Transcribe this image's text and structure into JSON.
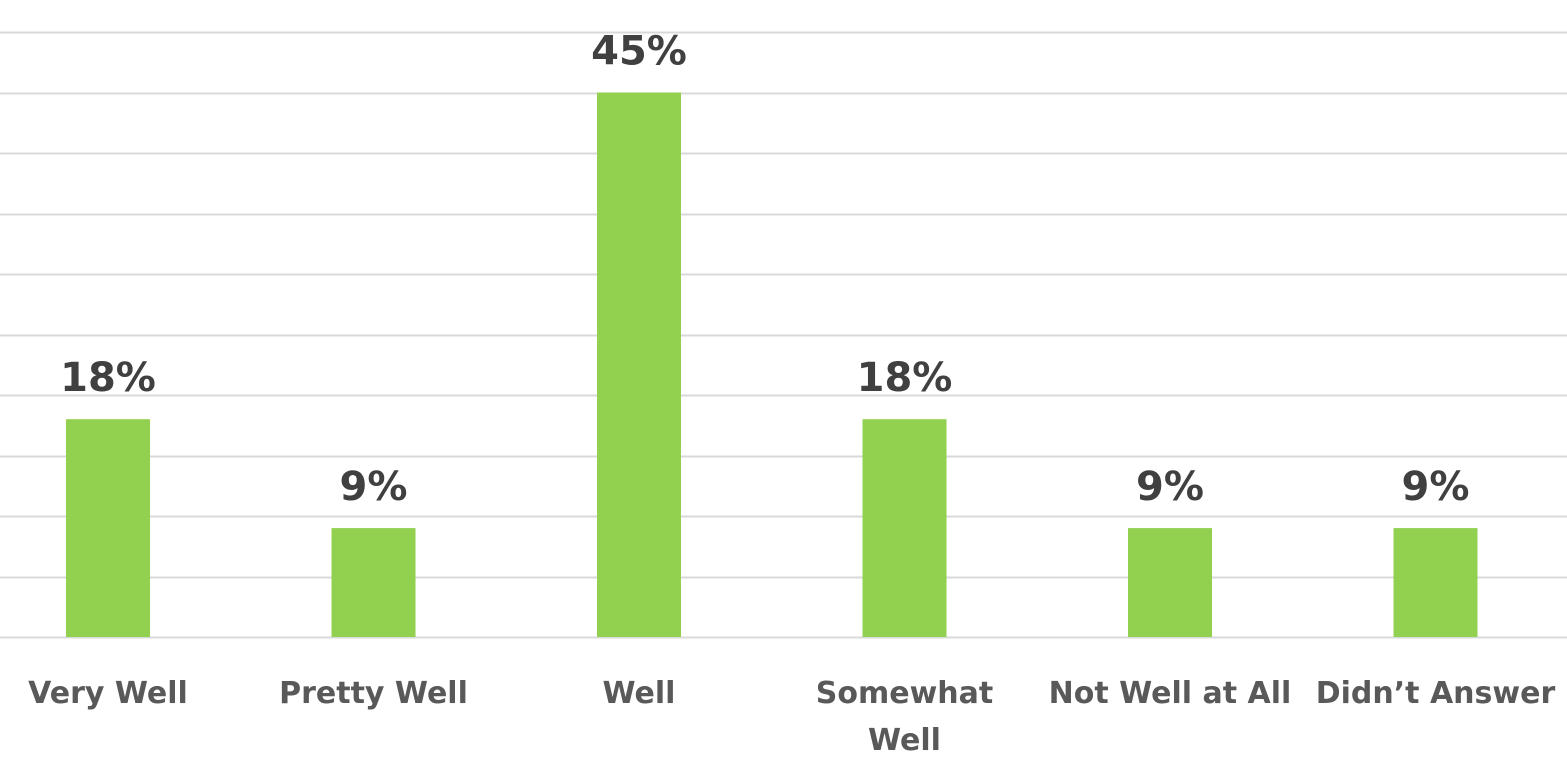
{
  "chart_data": {
    "type": "bar",
    "categories": [
      "Very Well",
      "Pretty Well",
      "Well",
      "Somewhat Well",
      "Not Well at All",
      "Didn’t Answer"
    ],
    "category_lines": [
      [
        "Very Well"
      ],
      [
        "Pretty Well"
      ],
      [
        "Well"
      ],
      [
        "Somewhat",
        "Well"
      ],
      [
        "Not Well at All"
      ],
      [
        "Didn’t Answer"
      ]
    ],
    "values": [
      18,
      9,
      45,
      18,
      9,
      9
    ],
    "data_labels": [
      "18%",
      "9%",
      "45%",
      "18%",
      "9%",
      "9%"
    ],
    "unit": "%",
    "ylim": [
      0,
      50
    ],
    "grid": true,
    "legend": "none",
    "title": "",
    "xlabel": "",
    "ylabel": "",
    "colors": {
      "bar": "#92d050",
      "grid": "#d9d9d9",
      "data_label": "#404040",
      "category_label": "#595959"
    }
  }
}
